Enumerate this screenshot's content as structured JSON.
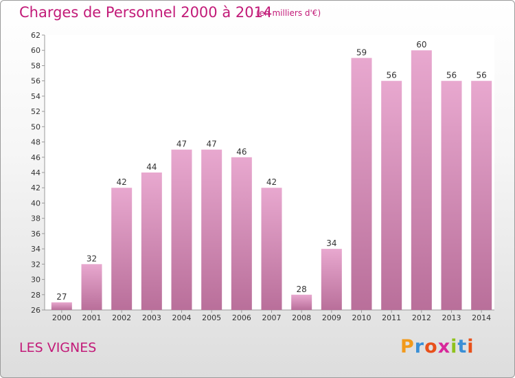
{
  "header": {
    "title": "Charges de Personnel 2000 à 2014",
    "subtitle": "(en milliers d'€)"
  },
  "footer": {
    "commune": "LES VIGNES",
    "logo": "Proxiti"
  },
  "colors": {
    "title": "#c21a78",
    "bar_top": "#e8a8cf",
    "bar_bottom": "#b96f9a",
    "logo_letters": [
      "#f29a1c",
      "#3a8fd6",
      "#e8501a",
      "#d8279a",
      "#8fc21d",
      "#3a8fd6",
      "#e8501a"
    ]
  },
  "chart_data": {
    "type": "bar",
    "categories": [
      "2000",
      "2001",
      "2002",
      "2003",
      "2004",
      "2005",
      "2006",
      "2007",
      "2008",
      "2009",
      "2010",
      "2011",
      "2012",
      "2013",
      "2014"
    ],
    "values": [
      27,
      32,
      42,
      44,
      47,
      47,
      46,
      42,
      28,
      34,
      59,
      56,
      60,
      56,
      56
    ],
    "data_labels": [
      "27",
      "32",
      "42",
      "44",
      "47",
      "47",
      "46",
      "42",
      "28",
      "34",
      "59",
      "56",
      "60",
      "56",
      "56"
    ],
    "title": "Charges de Personnel 2000 à 2014",
    "xlabel": "",
    "ylabel": "",
    "ylim": [
      26,
      62
    ],
    "yticks": [
      26,
      28,
      30,
      32,
      34,
      36,
      38,
      40,
      42,
      44,
      46,
      48,
      50,
      52,
      54,
      56,
      58,
      60,
      62
    ],
    "grid": false,
    "legend": "none"
  }
}
